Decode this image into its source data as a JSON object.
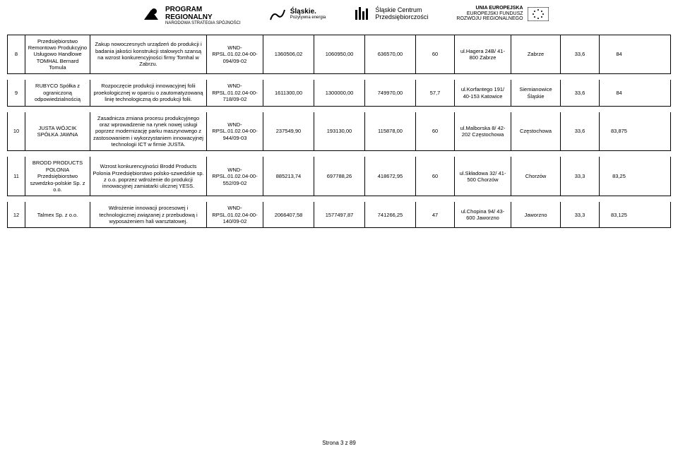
{
  "logos": {
    "regional": {
      "title": "PROGRAM\nREGIONALNY",
      "sub": "NARODOWA STRATEGIA SPÓJNOŚCI"
    },
    "slaskie": {
      "title": "Śląskie.",
      "sub": "Pozytywna energia"
    },
    "centrum": {
      "title": "Śląskie Centrum",
      "sub": "Przedsiębiorczości"
    },
    "eu": {
      "top": "UNIA EUROPEJSKA",
      "mid": "EUROPEJSKI FUNDUSZ",
      "bot": "ROZWOJU REGIONALNEGO"
    }
  },
  "rows": [
    {
      "num": "8",
      "company": "Przedsiębiorstwo Remontowo Produkcyjno Usługowo Handlowe TOMHAL Bernard Tomula",
      "desc": "Zakup nowoczesnych urządzeń do produkcji i badania jakości konstrukcji stalowych szansą na wzrost konkurencyjności firmy Tomhal w Zabrzu.",
      "code": "WND-RPSL.01.02.04-00-094/09-02",
      "v1": "1360506,02",
      "v2": "1060950,00",
      "v3": "636570,00",
      "v4": "60",
      "addr": "ul.Hagera 24B/ 41-800 Zabrze",
      "city": "Zabrze",
      "s1": "33,6",
      "s2": "84"
    },
    {
      "num": "9",
      "company": "RUBYCO Spółka z ograniczoną odpowiedzialnością",
      "desc": "Rozpoczęcie produkcji innowacyjnej folii proekologicznej w oparciu o zautomatyzowaną linię technologiczną do produkcji folii.",
      "code": "WND-RPSL.01.02.04-00-718/09-02",
      "v1": "1611300,00",
      "v2": "1300000,00",
      "v3": "749970,00",
      "v4": "57,7",
      "addr": "ul.Korfantego 191/ 40-153 Katowice",
      "city": "Siemianowice Śląskie",
      "s1": "33,6",
      "s2": "84"
    },
    {
      "num": "10",
      "company": "JUSTA WÓJCIK SPÓŁKA JAWNA",
      "desc": "Zasadnicza zmiana procesu produkcyjnego oraz wprowadzenie na rynek nowej usługi poprzez modernizację parku maszynowego z zastosowaniem i wykorzystaniem innowacyjnej technologii ICT w firmie JUSTA.",
      "code": "WND-RPSL.01.02.04-00-944/09-03",
      "v1": "237549,90",
      "v2": "193130,00",
      "v3": "115878,00",
      "v4": "60",
      "addr": "ul.Malborska 8/ 42-202 Częstochowa",
      "city": "Częstochowa",
      "s1": "33,6",
      "s2": "83,875"
    },
    {
      "num": "11",
      "company": "BRODD PRODUCTS POLONIA Przedsiębiorstwo szwedzko-polskie Sp. z o.o.",
      "desc": "Wzrost konkurencyjności Brodd Products Polonia Przedsiębiorstwo polsko-szwedzkie sp. z o.o. poprzez wdrożenie do produkcji innowacyjnej zamiatarki ulicznej YESS.",
      "code": "WND-RPSL.01.02.04-00-552/09-02",
      "v1": "885213,74",
      "v2": "697788,26",
      "v3": "418672,95",
      "v4": "60",
      "addr": "ul.Składowa 32/ 41-500 Chorzów",
      "city": "Chorzów",
      "s1": "33,3",
      "s2": "83,25"
    },
    {
      "num": "12",
      "company": "Talmex Sp. z o.o.",
      "desc": "Wdrożenie innowacji procesowej i technologicznej związanej z przebudową i wyposażeniem hali warsztatowej.",
      "code": "WND-RPSL.01.02.04-00-140/09-02",
      "v1": "2066407,58",
      "v2": "1577497,87",
      "v3": "741266,25",
      "v4": "47",
      "addr": "ul.Chopina 94/ 43-600 Jaworzno",
      "city": "Jaworzno",
      "s1": "33,3",
      "s2": "83,125"
    }
  ],
  "footer": "Strona 3 z 89"
}
